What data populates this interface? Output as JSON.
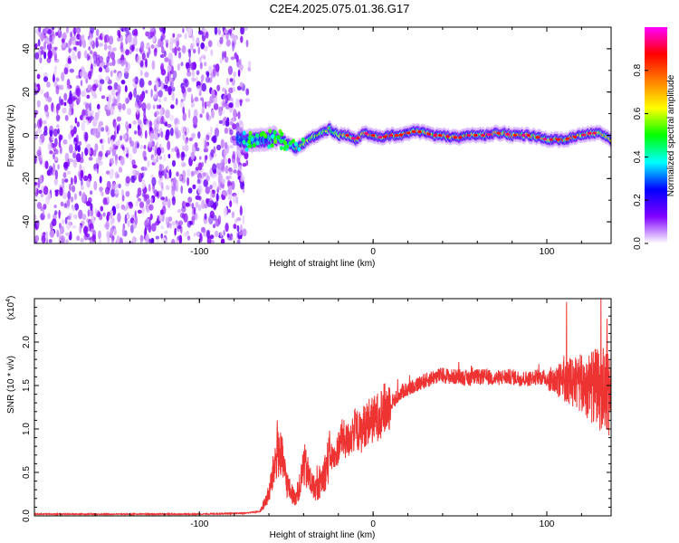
{
  "title": "C2E4.2025.075.01.36.G17",
  "chart_data": [
    {
      "type": "heatmap",
      "title": "C2E4.2025.075.01.36.G17",
      "xlabel": "Height of straight line (km)",
      "ylabel": "Frequency (Hz)",
      "xlim": [
        -195,
        137
      ],
      "ylim": [
        -50,
        50
      ],
      "x_ticks": [
        -100,
        0,
        100
      ],
      "y_ticks": [
        -40,
        -20,
        0,
        20,
        40
      ],
      "x_tick_labels": [
        "-100",
        "0",
        "100"
      ],
      "y_tick_labels": [
        "-40",
        "-20",
        "0",
        "20",
        "40"
      ],
      "colorbar": {
        "label": "Normalized spectral amplitude",
        "range": [
          0,
          1
        ],
        "ticks": [
          0.0,
          0.2,
          0.4,
          0.6,
          0.8
        ],
        "tick_labels": [
          "0.0",
          "0.2",
          "0.4",
          "0.6",
          "0.8"
        ],
        "colormap": [
          "#ffffff",
          "#8000ff",
          "#0000ff",
          "#00ffff",
          "#00ff00",
          "#ffff00",
          "#ff8000",
          "#ff0000",
          "#ff00ff"
        ]
      },
      "noise_region": {
        "x": [
          -195,
          -75
        ],
        "y": [
          -50,
          50
        ]
      },
      "signal_track": {
        "x": [
          -75,
          -65,
          -55,
          -45,
          -40,
          -35,
          -30,
          -25,
          -20,
          -15,
          -10,
          -5,
          0,
          5,
          10,
          15,
          20,
          25,
          30,
          35,
          40,
          45,
          50,
          55,
          60,
          65,
          70,
          75,
          80,
          85,
          90,
          95,
          100,
          105,
          110,
          115,
          120,
          125,
          130,
          137
        ],
        "y": [
          -3,
          -2,
          -1,
          -6,
          -4,
          -1,
          1,
          3,
          0,
          0,
          -2,
          1,
          0,
          -1,
          0,
          0,
          1,
          2,
          1,
          0,
          0,
          -1,
          -1,
          0,
          0,
          0,
          1,
          1,
          0,
          0,
          0,
          -1,
          -2,
          -2,
          -2,
          -1,
          0,
          1,
          1,
          -2
        ]
      }
    },
    {
      "type": "line",
      "xlabel": "Height of straight line (km)",
      "ylabel": "SNR (10 * v/v)",
      "y_scale_label": "(x10",
      "y_scale_exponent": "4",
      "y_scale_suffix": ")",
      "xlim": [
        -195,
        137
      ],
      "ylim": [
        0,
        2.5
      ],
      "x_ticks": [
        -100,
        0,
        100
      ],
      "y_ticks": [
        0.0,
        0.5,
        1.0,
        1.5,
        2.0
      ],
      "x_tick_labels": [
        "-100",
        "0",
        "100"
      ],
      "y_tick_labels": [
        "0.0",
        "0.5",
        "1.0",
        "1.5",
        "2.0"
      ],
      "color": "#ee3333",
      "series": [
        {
          "x": [
            -195,
            -150,
            -100,
            -75,
            -65,
            -60,
            -57,
            -55,
            -52,
            -50,
            -48,
            -45,
            -42,
            -40,
            -37,
            -35,
            -32,
            -30,
            -27,
            -25,
            -22,
            -20,
            -18,
            -15,
            -12,
            -10,
            -7,
            -5,
            -2,
            0,
            3,
            5,
            8,
            10,
            13,
            15,
            18,
            20,
            23,
            25,
            28,
            30,
            35,
            40,
            45,
            50,
            55,
            60,
            65,
            70,
            75,
            80,
            85,
            90,
            95,
            100,
            105,
            110,
            115,
            120,
            125,
            130,
            137
          ],
          "y": [
            0.02,
            0.02,
            0.02,
            0.03,
            0.05,
            0.25,
            0.55,
            0.8,
            0.6,
            0.4,
            0.3,
            0.2,
            0.35,
            0.6,
            0.45,
            0.35,
            0.3,
            0.4,
            0.55,
            0.7,
            0.65,
            0.8,
            0.9,
            0.85,
            0.95,
            1.0,
            0.95,
            1.05,
            1.1,
            1.1,
            1.15,
            1.2,
            1.25,
            1.3,
            1.35,
            1.4,
            1.45,
            1.45,
            1.5,
            1.5,
            1.55,
            1.55,
            1.6,
            1.62,
            1.6,
            1.6,
            1.58,
            1.6,
            1.6,
            1.58,
            1.6,
            1.6,
            1.58,
            1.58,
            1.6,
            1.58,
            1.55,
            1.55,
            1.55,
            1.5,
            1.5,
            1.45,
            1.45
          ]
        }
      ]
    }
  ]
}
